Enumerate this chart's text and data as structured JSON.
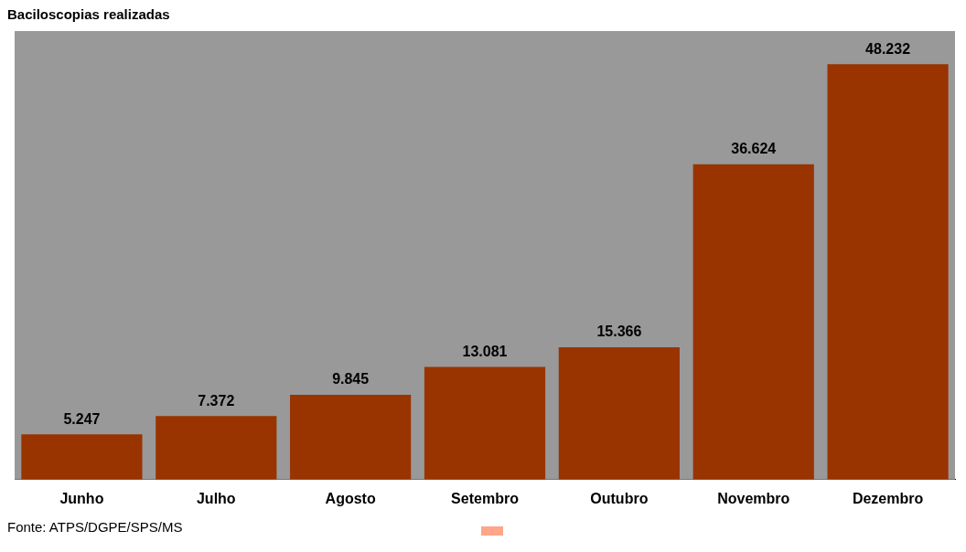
{
  "chart_data": {
    "type": "bar",
    "title": "Baciloscopias realizadas",
    "categories": [
      "Junho",
      "Julho",
      "Agosto",
      "Setembro",
      "Outubro",
      "Novembro",
      "Dezembro"
    ],
    "values": [
      5247,
      7372,
      9845,
      13081,
      15366,
      36624,
      48232
    ],
    "value_labels": [
      "5.247",
      "7.372",
      "9.845",
      "13.081",
      "15.366",
      "36.624",
      "48.232"
    ],
    "color": "#993300",
    "tick_labels": "x",
    "grid": false,
    "annotations": [
      "Fonte: ATPS/DGPE/SPS/MS"
    ]
  }
}
